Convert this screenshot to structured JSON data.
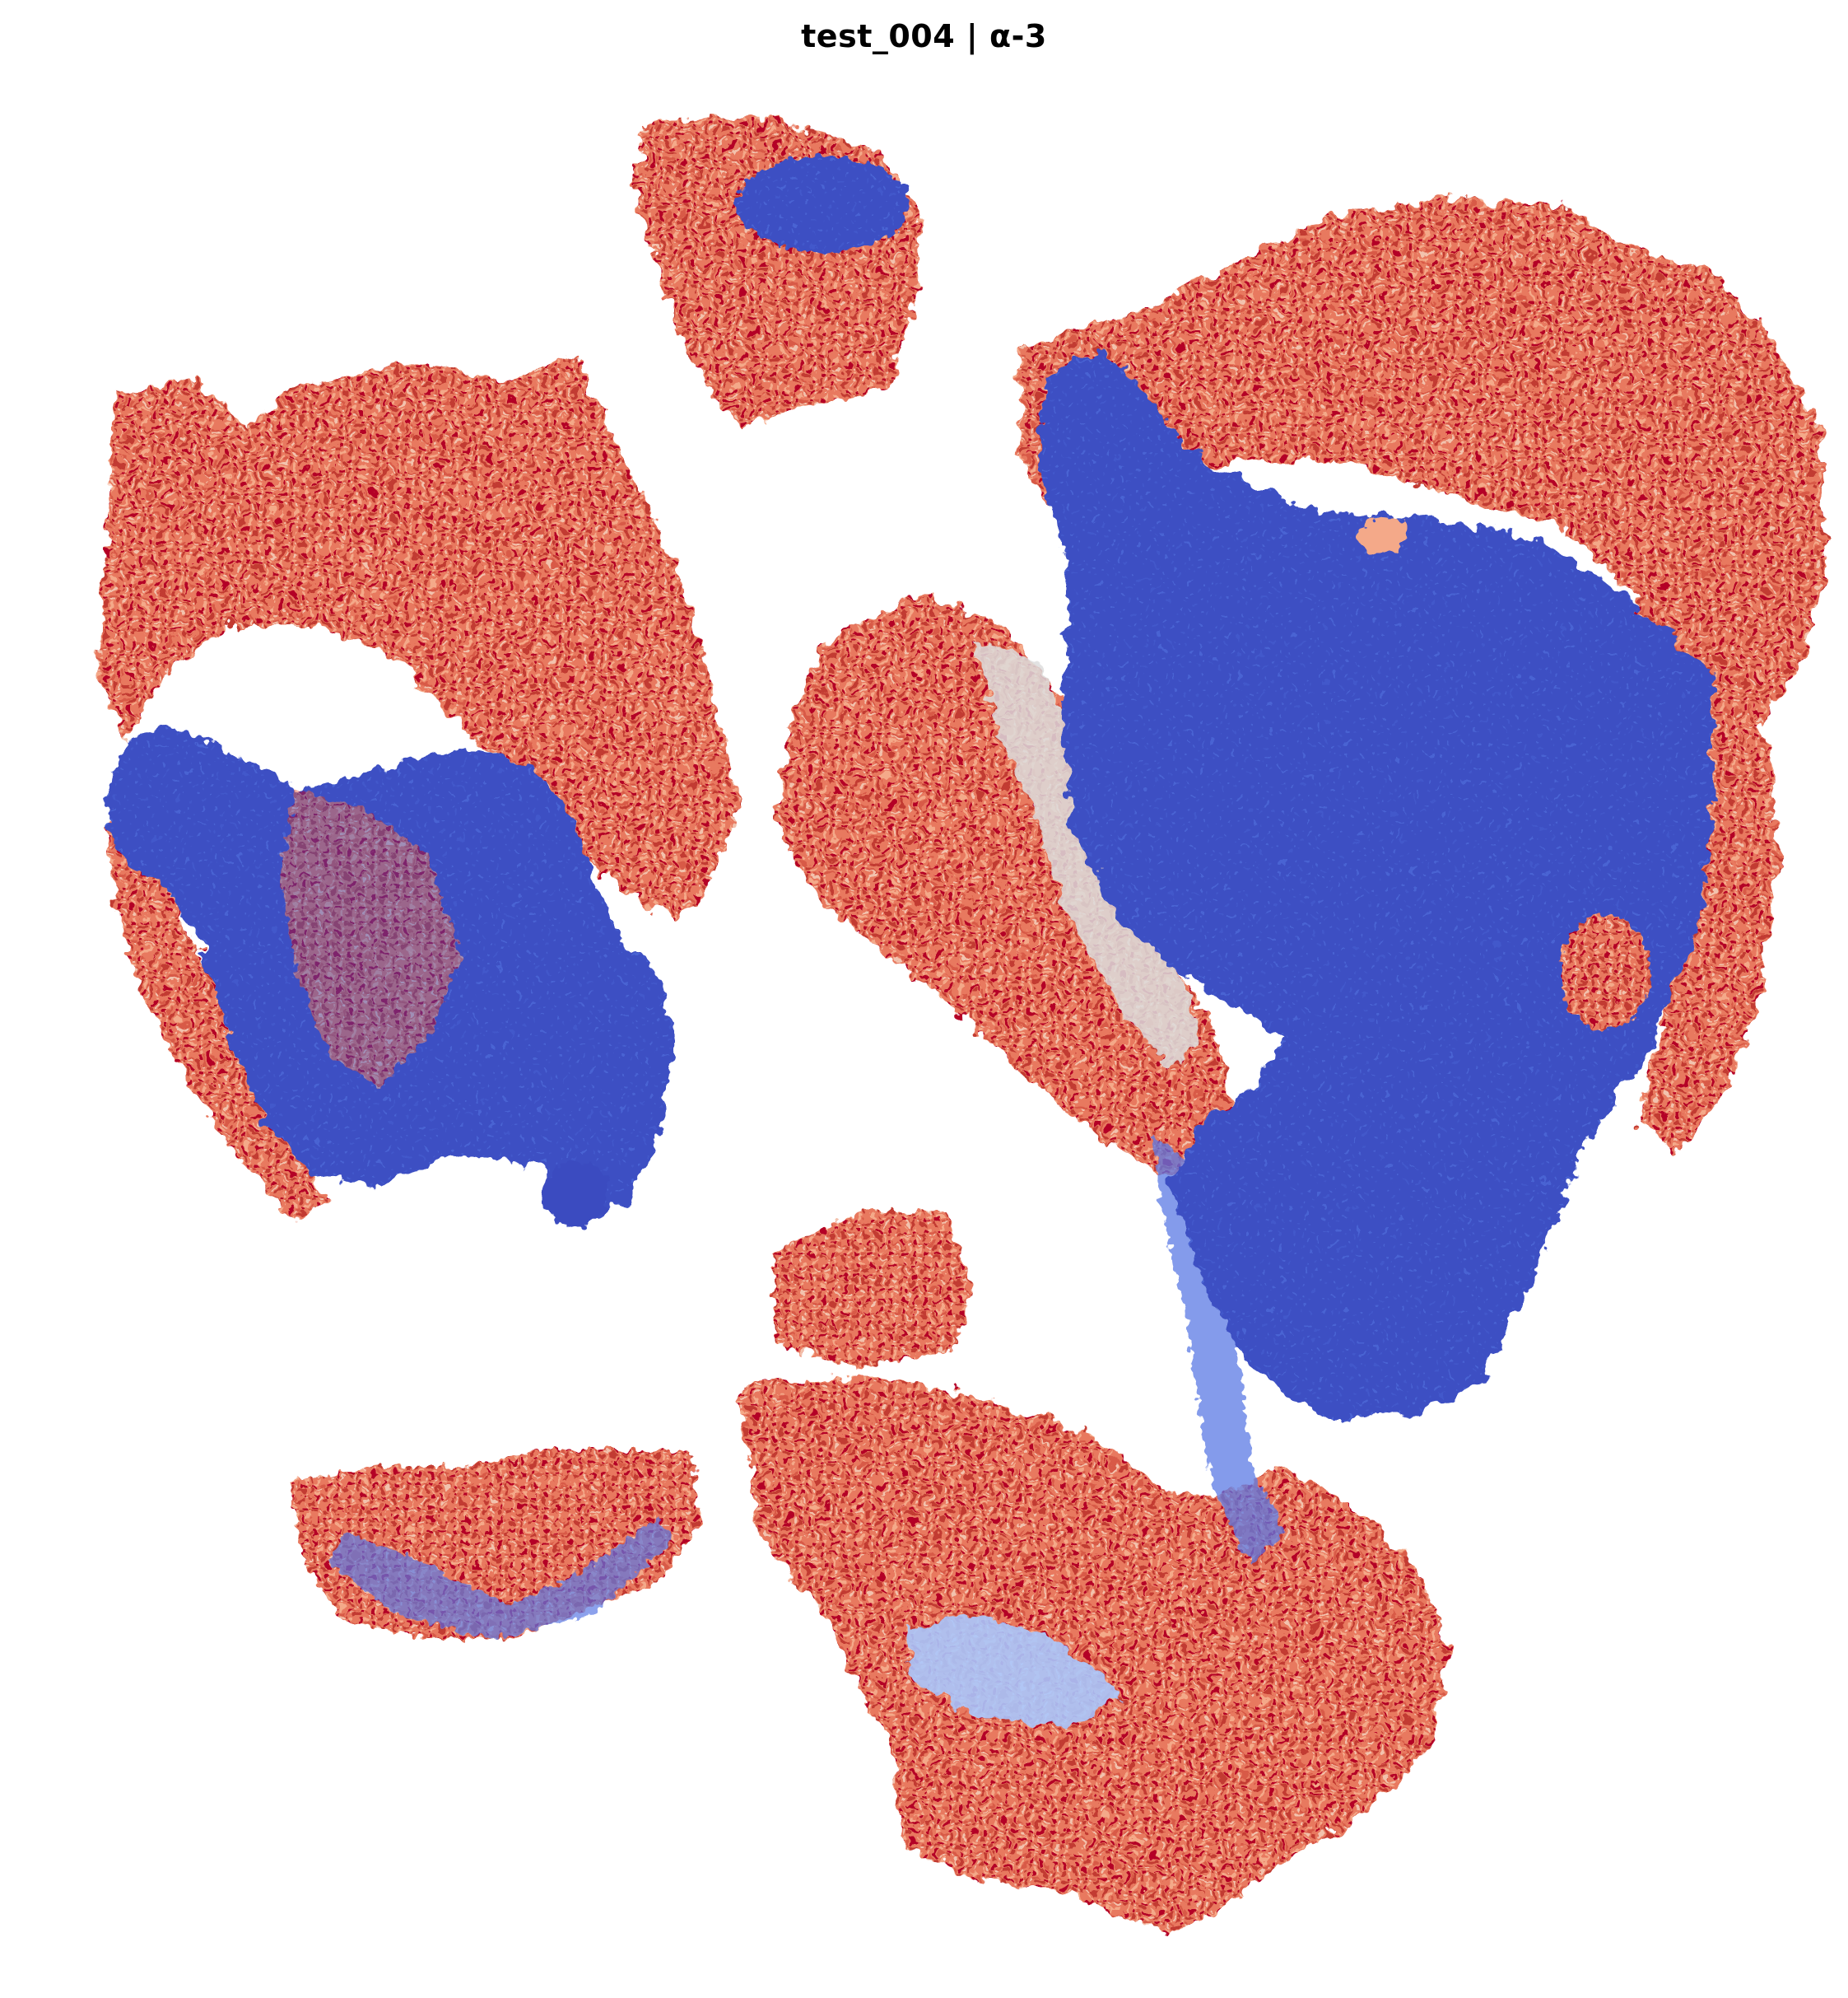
{
  "figure": {
    "title": "test_004 | α-3"
  },
  "colors": {
    "background": "#ffffff",
    "deep_blue": "#3b4cc0",
    "mid_blue": "#5b7ae5",
    "light_blue": "#aac7fd",
    "neutral": "#dddddd",
    "light_red": "#f4a989",
    "mid_red": "#e36c55",
    "deep_red": "#b40426"
  }
}
